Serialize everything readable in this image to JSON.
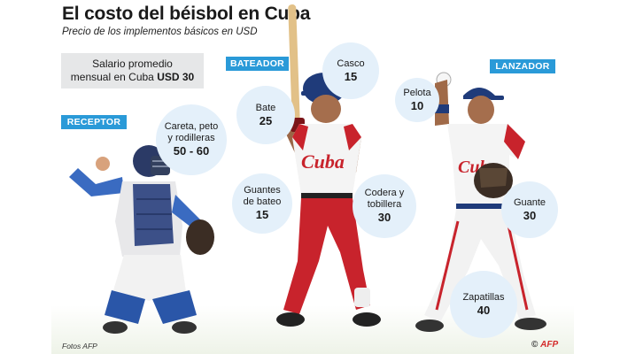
{
  "header": {
    "title": "El costo del béisbol en Cuba",
    "subtitle": "Precio de los implementos básicos en USD"
  },
  "salary": {
    "line1": "Salario promedio",
    "line2_prefix": "mensual en Cuba",
    "line2_value": "USD 30"
  },
  "positions": {
    "receptor": "RECEPTOR",
    "bateador": "BATEADOR",
    "lanzador": "LANZADOR"
  },
  "items": [
    {
      "id": "careta",
      "label": "Careta, peto y rodilleras",
      "price": "50 - 60"
    },
    {
      "id": "casco",
      "label": "Casco",
      "price": "15"
    },
    {
      "id": "bate",
      "label": "Bate",
      "price": "25"
    },
    {
      "id": "guantes-bateo",
      "label": "Guantes de bateo",
      "price": "15"
    },
    {
      "id": "codera",
      "label": "Codera y tobillera",
      "price": "30"
    },
    {
      "id": "pelota",
      "label": "Pelota",
      "price": "10"
    },
    {
      "id": "guante",
      "label": "Guante",
      "price": "30"
    },
    {
      "id": "zapatillas",
      "label": "Zapatillas",
      "price": "40"
    }
  ],
  "jersey_text": "Cuba",
  "footer": {
    "credit": "Fotos AFP",
    "agency_prefix": "©",
    "agency": "AFP"
  },
  "colors": {
    "tag_blue": "#2a9ad8",
    "bubble": "#e4f0fa",
    "salary_box": "#e6e7e8",
    "jersey_red": "#c8232c",
    "catcher_blue": "#2a56a8"
  },
  "icons": [
    "catcher-figure",
    "batter-figure",
    "pitcher-figure",
    "afp-logo"
  ]
}
